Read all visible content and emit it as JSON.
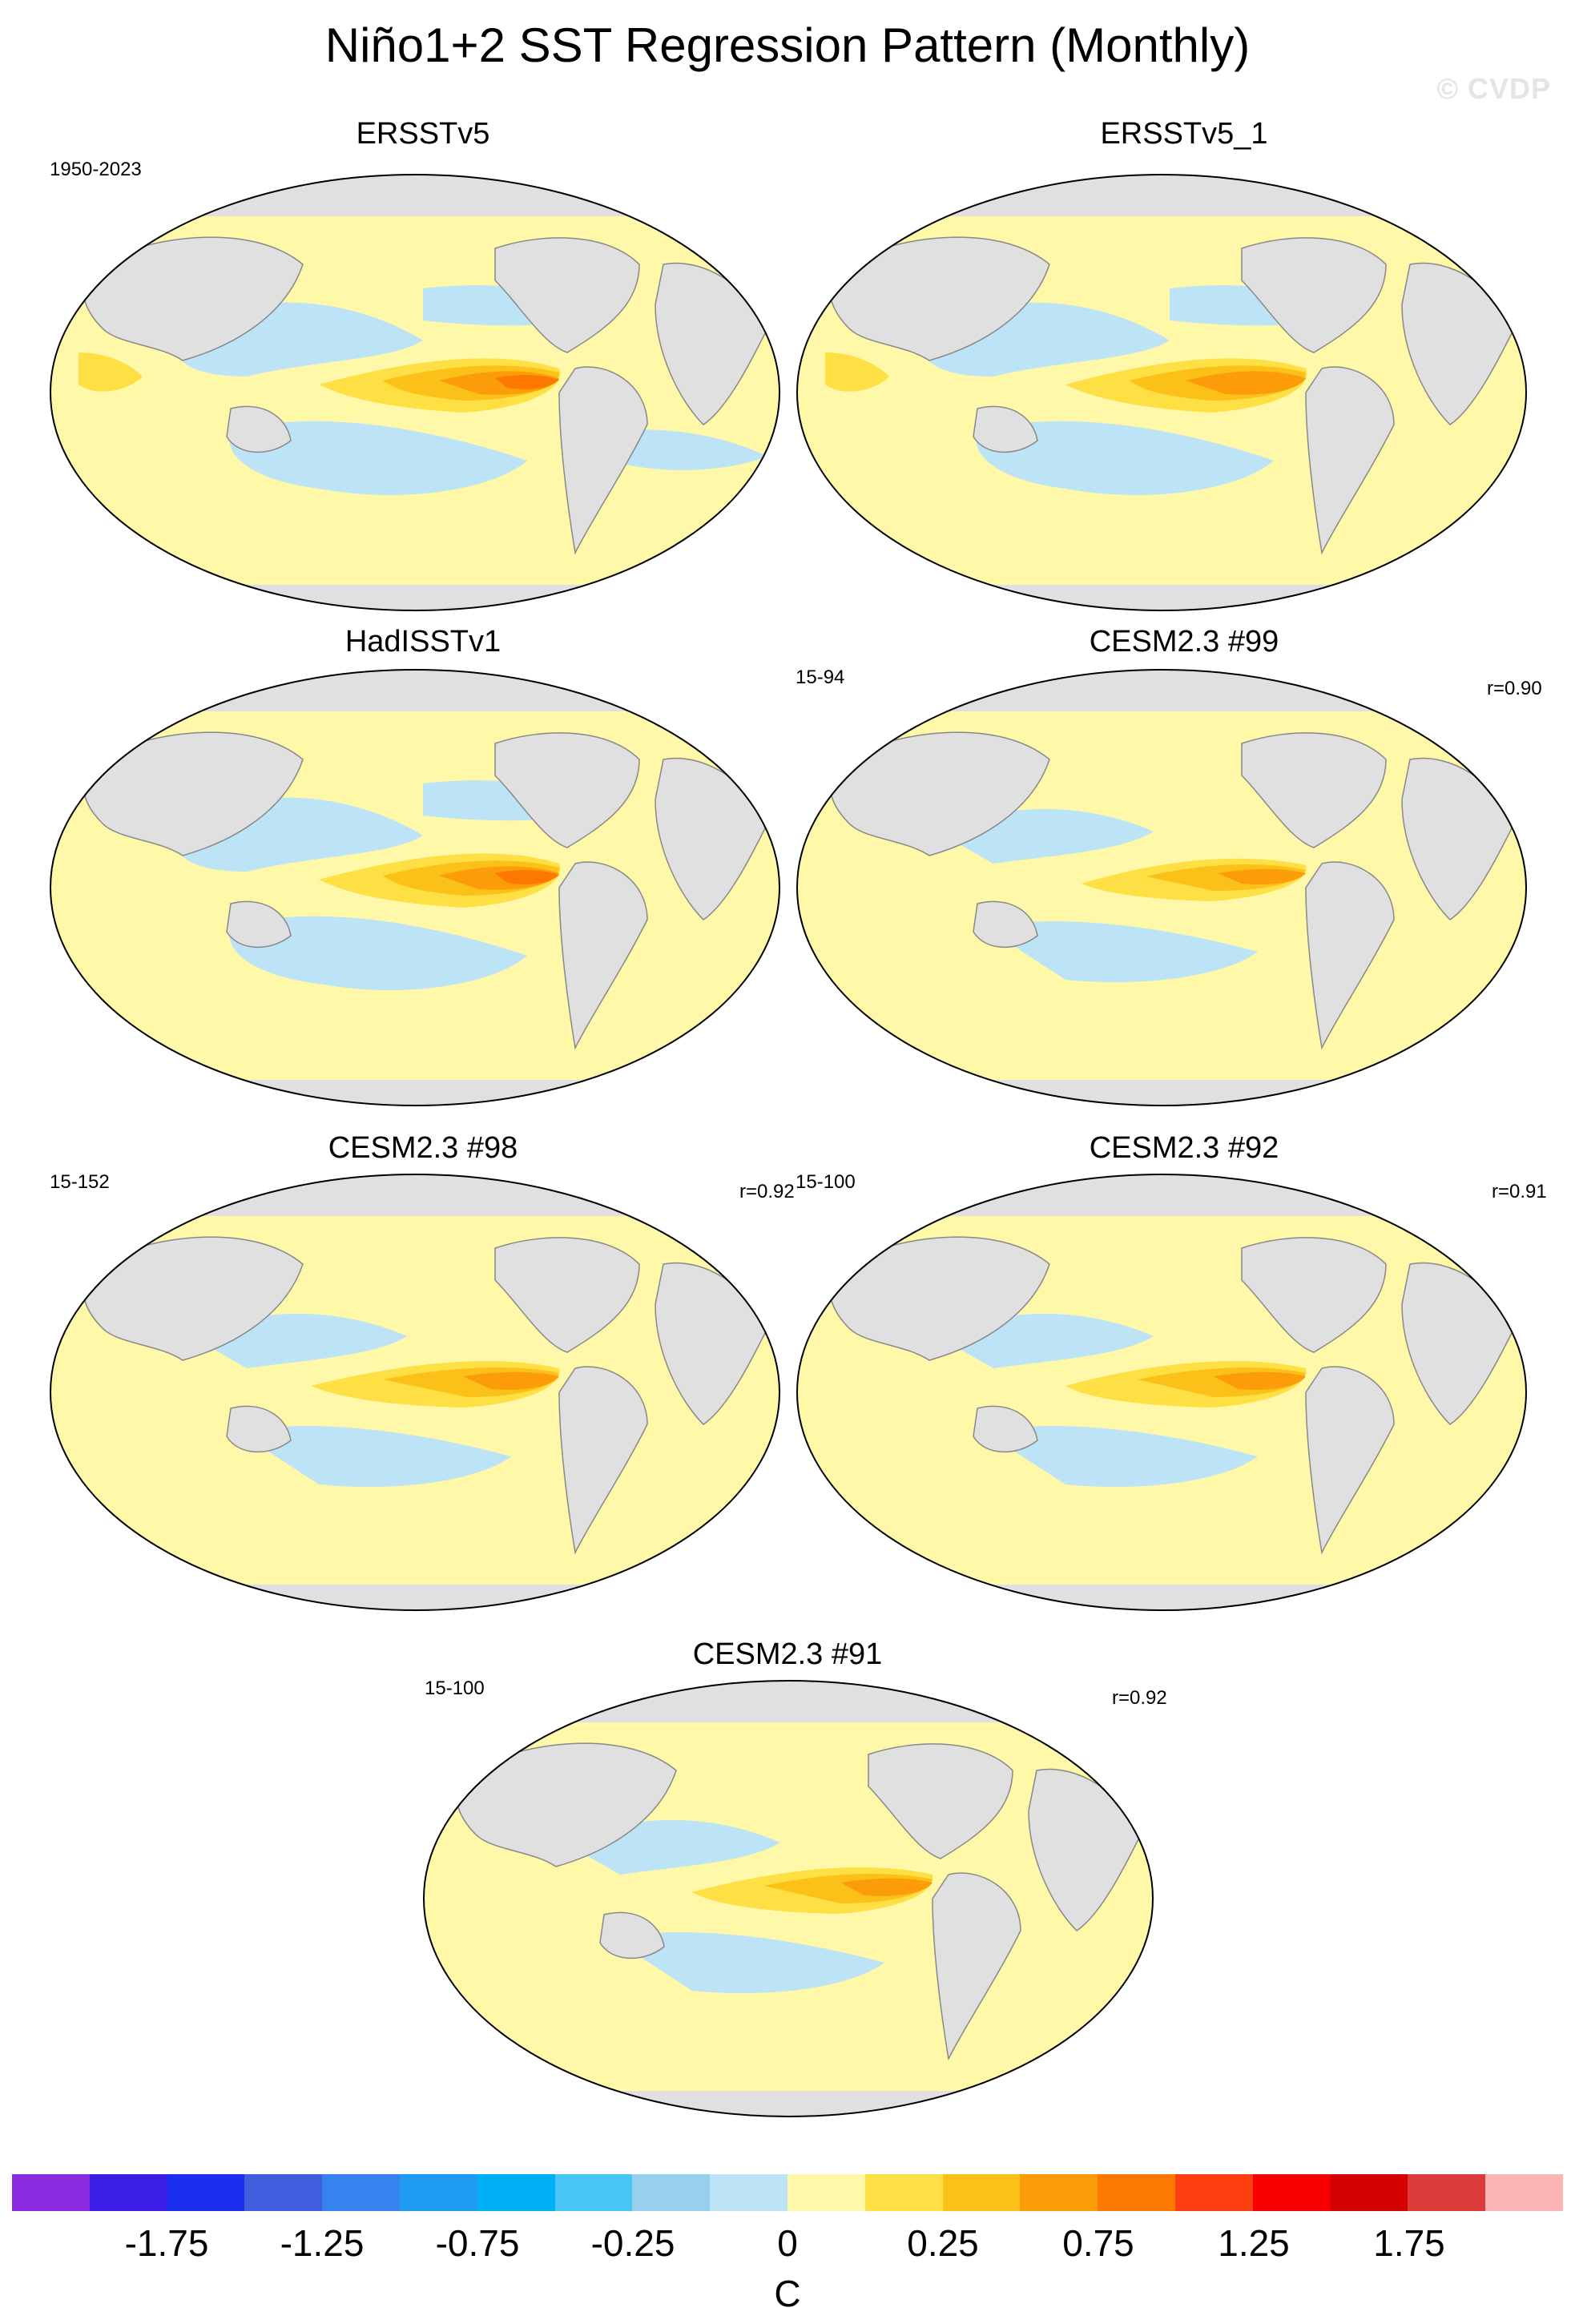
{
  "title": "Niño1+2 SST Regression Pattern (Monthly)",
  "watermark": "© CVDP",
  "panels": [
    {
      "title": "ERSSTv5",
      "years": "1950-2023",
      "corr": ""
    },
    {
      "title": "ERSSTv5_1",
      "years": "",
      "corr": ""
    },
    {
      "title": "HadISSTv1",
      "years": "",
      "corr": ""
    },
    {
      "title": "CESM2.3 #99",
      "years": "15-94",
      "corr": "r=0.90"
    },
    {
      "title": "CESM2.3 #98",
      "years": "15-152",
      "corr": "r=0.92"
    },
    {
      "title": "CESM2.3 #92",
      "years": "15-100",
      "corr": "r=0.91"
    },
    {
      "title": "CESM2.3 #91",
      "years": "15-100",
      "corr": "r=0.92"
    }
  ],
  "colorbar": {
    "colors": [
      "#8a2be2",
      "#3a1ee8",
      "#1a2eee",
      "#3f5ede",
      "#3682ee",
      "#1f9bf2",
      "#00b0f6",
      "#47c6f6",
      "#97cfec",
      "#bde4f6",
      "#fff8a8",
      "#fee044",
      "#fcc118",
      "#fc9c08",
      "#fc7800",
      "#fc3e10",
      "#f80000",
      "#d40000",
      "#dd3a3a",
      "#fdb4b4"
    ],
    "ticks": [
      "-1.75",
      "-1.25",
      "-0.75",
      "-0.25",
      "0",
      "0.25",
      "0.75",
      "1.25",
      "1.75"
    ],
    "units": "C"
  }
}
